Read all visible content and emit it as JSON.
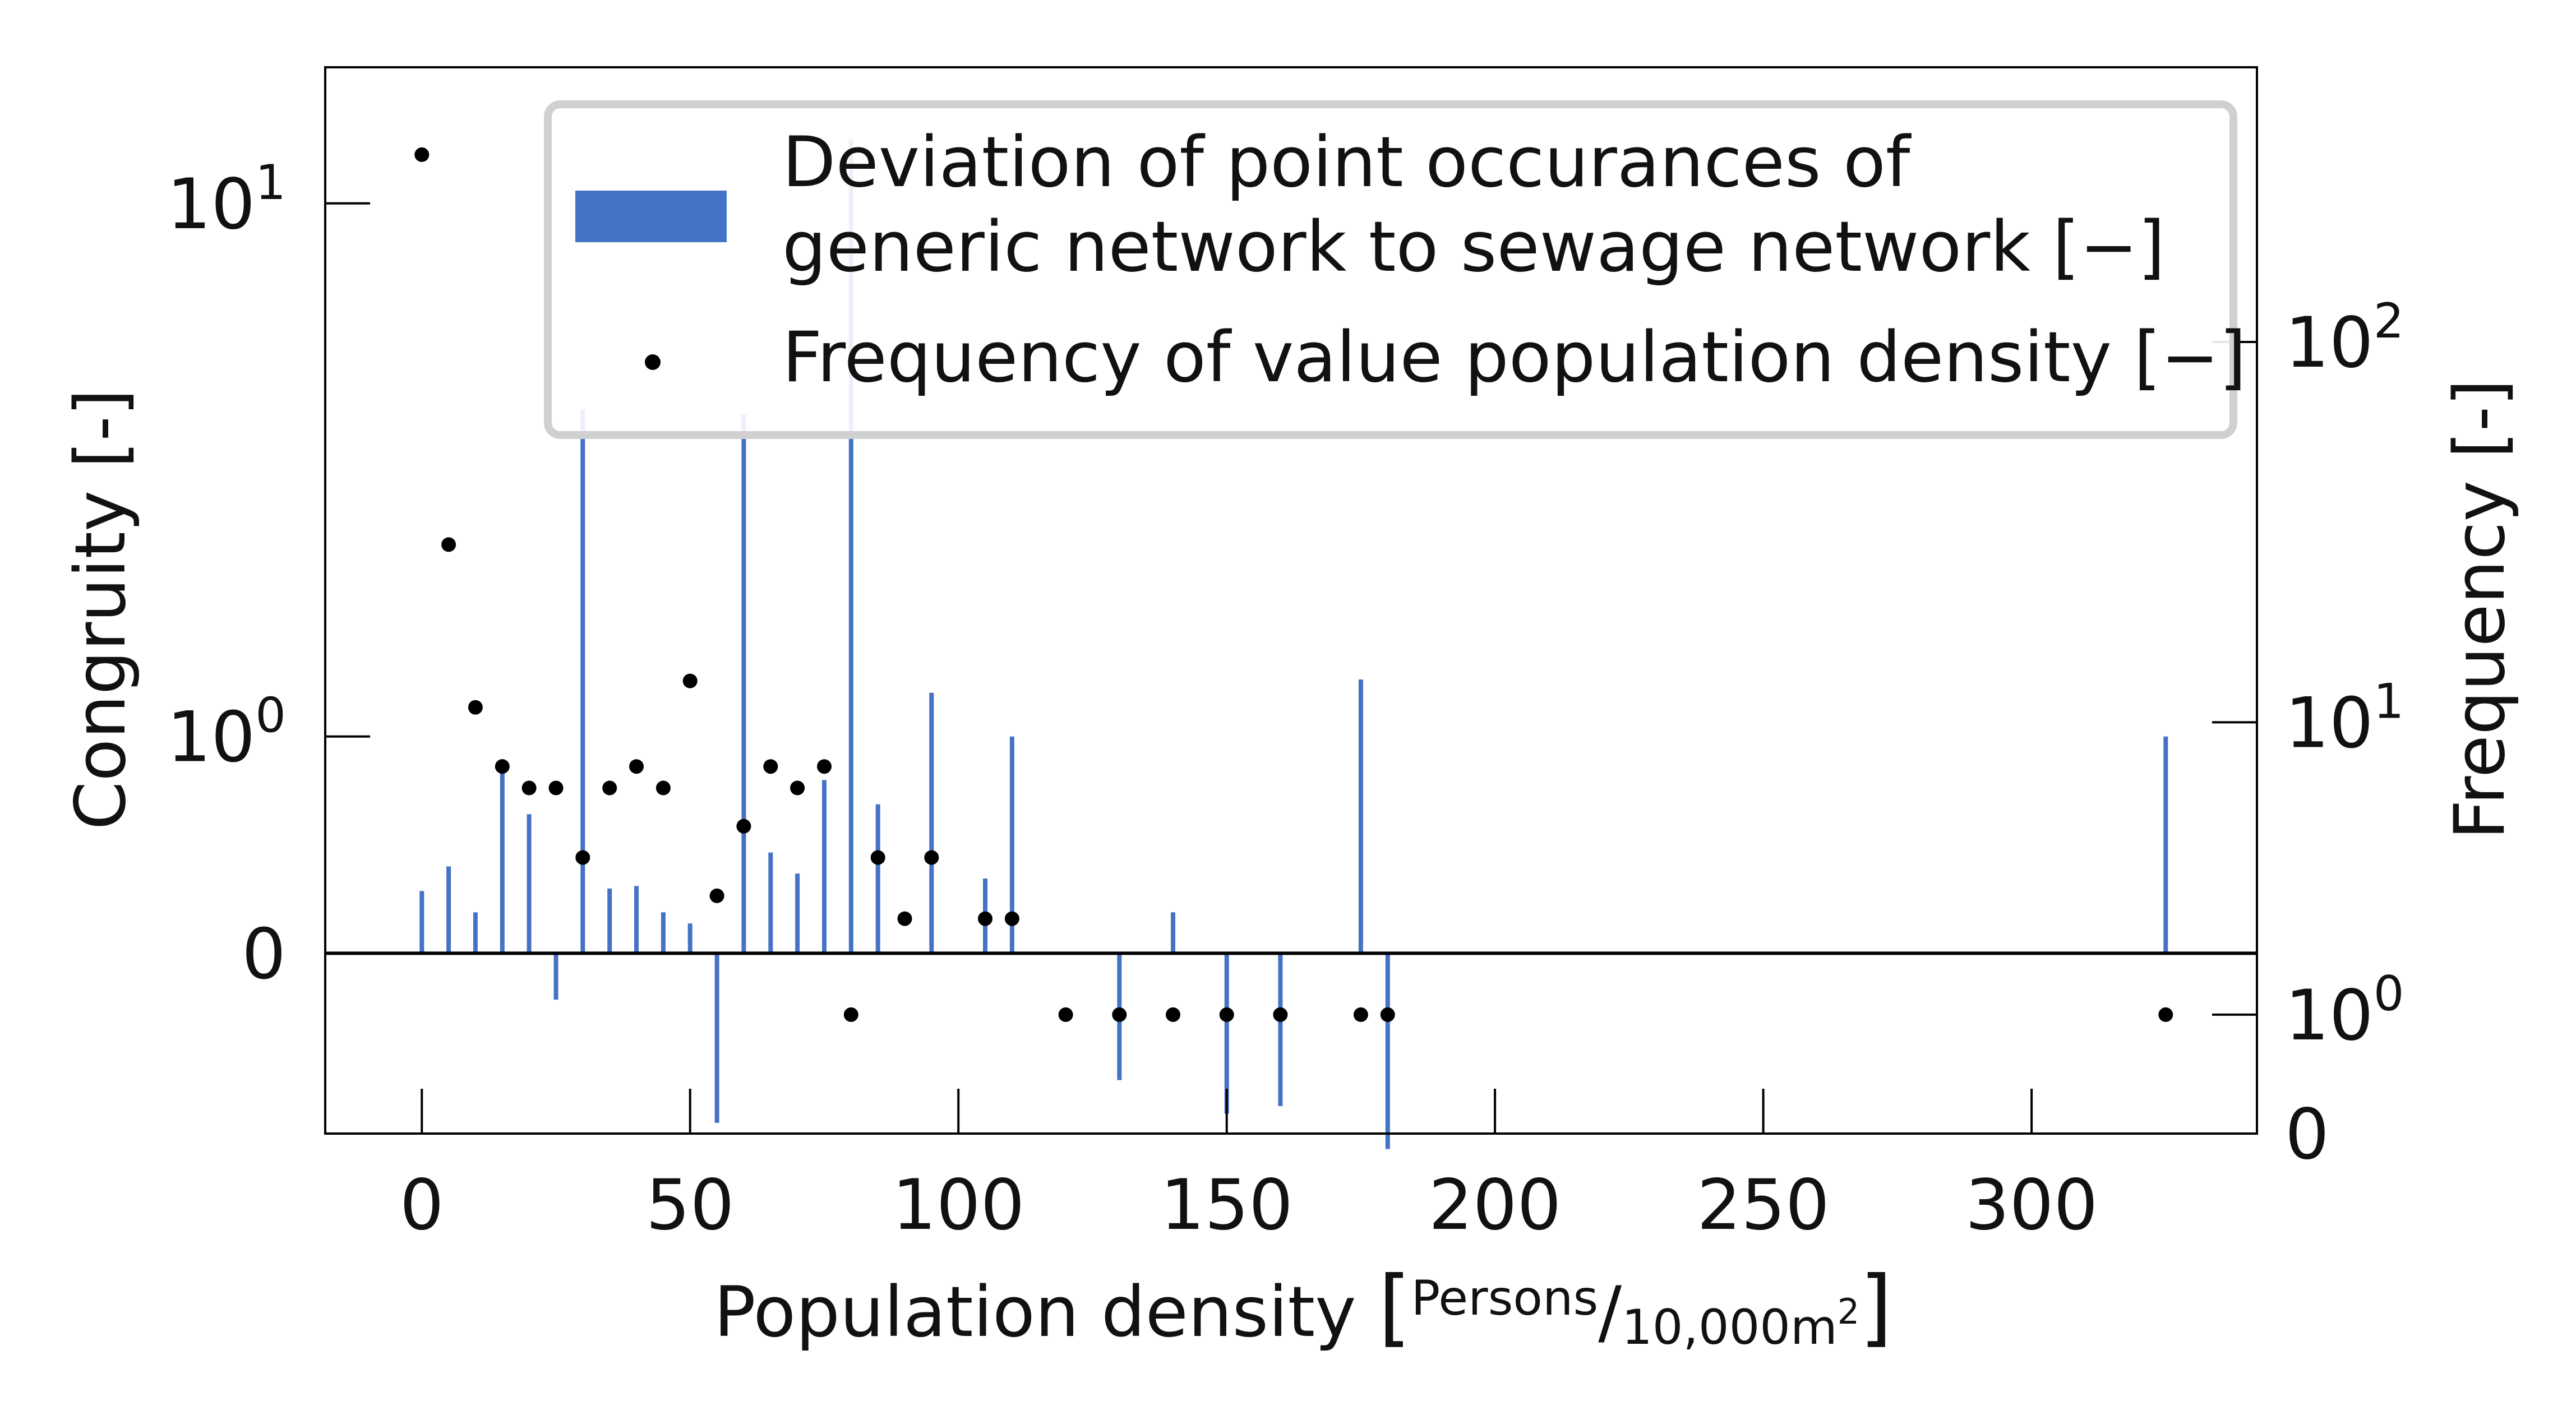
{
  "colors": {
    "bars": "#4472c4",
    "points": "#000000",
    "axis": "#000000",
    "legend_border": "#d0d0d0"
  },
  "axes": {
    "x_label_main": "Population density ",
    "x_label_unit_num": "Persons",
    "x_label_unit_den": "10,000m",
    "x_label_unit_den_sup": "2",
    "y_left_label": "Congruity [-]",
    "y_right_label": "Frequency [-]",
    "x_ticks": [
      "0",
      "50",
      "100",
      "150",
      "200",
      "250",
      "300"
    ],
    "y_left_ticks": [
      {
        "base": "10",
        "exp": "1"
      },
      {
        "base": "10",
        "exp": "0"
      },
      {
        "base": "0",
        "exp": ""
      }
    ],
    "y_right_ticks": [
      {
        "base": "10",
        "exp": "2"
      },
      {
        "base": "10",
        "exp": "1"
      },
      {
        "base": "10",
        "exp": "0"
      },
      {
        "base": "0",
        "exp": ""
      }
    ]
  },
  "legend": {
    "bar_label_line1": "Deviation of point occurances of",
    "bar_label_line2": "generic network to sewage network [−]",
    "point_label": "Frequency of value population density [−]"
  },
  "chart_data": {
    "type": "bar+scatter",
    "title": "",
    "xlabel": "Population density [Persons/10,000m2]",
    "xlim": [
      -18,
      342
    ],
    "bars": {
      "name": "Deviation of point occurances of generic network to sewage network [−]",
      "axis": "left (symlog, linthresh 1)",
      "ylim": [
        -0.78,
        16
      ],
      "x": [
        0,
        5,
        10,
        15,
        20,
        25,
        30,
        35,
        40,
        45,
        50,
        55,
        60,
        65,
        70,
        75,
        80,
        85,
        90,
        95,
        105,
        110,
        130,
        140,
        150,
        160,
        175,
        180,
        325
      ],
      "values": [
        0.22,
        0.32,
        0.14,
        0.86,
        0.56,
        -0.16,
        4.7,
        0.23,
        0.24,
        0.14,
        0.1,
        -0.72,
        4.6,
        0.38,
        0.29,
        0.74,
        12.5,
        0.61,
        0.0,
        1.3,
        0.27,
        1.0,
        -0.5,
        0.14,
        -0.67,
        -0.63,
        1.4,
        -0.87,
        1.0
      ]
    },
    "points": {
      "name": "Frequency of value population density [−]",
      "axis": "right (symlog, linthresh 1)",
      "ylim": [
        0,
        500
      ],
      "x": [
        0,
        5,
        10,
        15,
        20,
        25,
        30,
        35,
        40,
        45,
        50,
        55,
        60,
        65,
        70,
        75,
        80,
        85,
        90,
        95,
        105,
        110,
        120,
        130,
        140,
        150,
        160,
        175,
        180,
        325
      ],
      "values": [
        300,
        30,
        11,
        7.5,
        6.5,
        6.5,
        4,
        6.5,
        7.5,
        6.5,
        13,
        3,
        5,
        7.5,
        6.5,
        7.5,
        1,
        4,
        2.5,
        4,
        2.5,
        2.5,
        1,
        1,
        1,
        1,
        1,
        1,
        1,
        1
      ]
    }
  }
}
